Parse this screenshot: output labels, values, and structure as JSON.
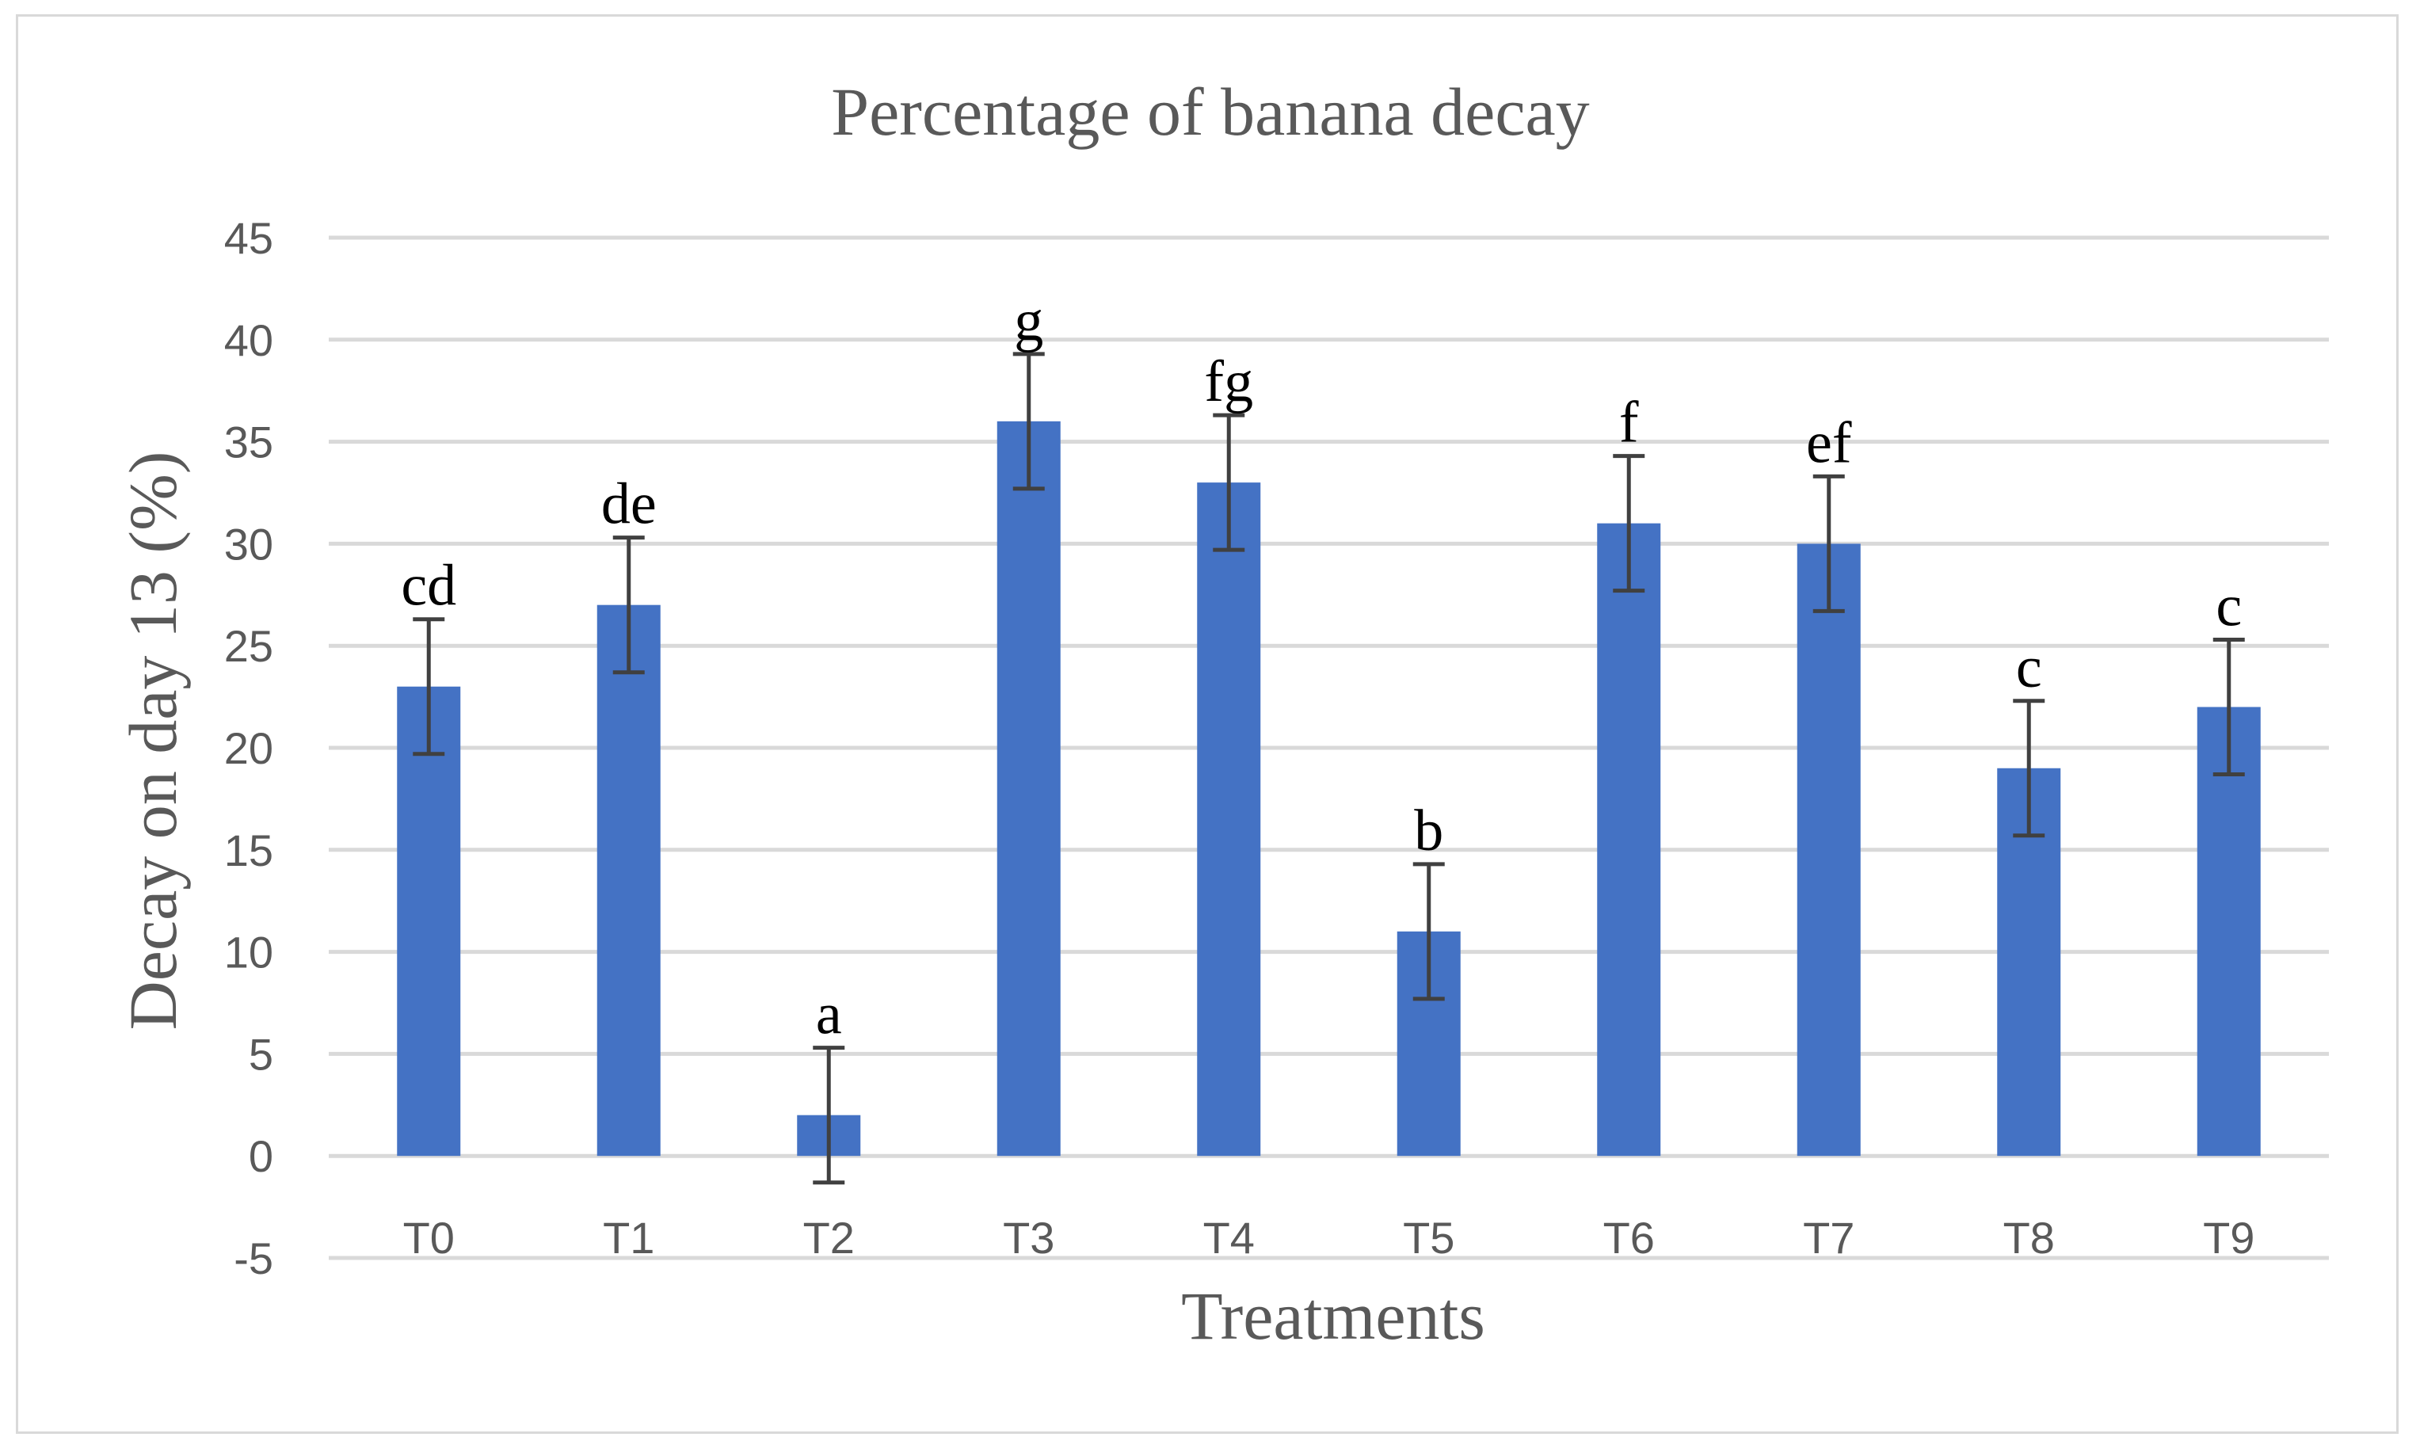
{
  "chart_data": {
    "type": "bar",
    "title": "Percentage of banana decay",
    "xlabel": "Treatments",
    "ylabel": "Decay on day 13 (%)",
    "ylim": [
      -5,
      45
    ],
    "yticks": [
      -5,
      0,
      5,
      10,
      15,
      20,
      25,
      30,
      35,
      40,
      45
    ],
    "grid": true,
    "categories": [
      "T0",
      "T1",
      "T2",
      "T3",
      "T4",
      "T5",
      "T6",
      "T7",
      "T8",
      "T9"
    ],
    "values": [
      23,
      27,
      2,
      36,
      33,
      11,
      31,
      30,
      19,
      22
    ],
    "error": [
      3.3,
      3.3,
      3.3,
      3.3,
      3.3,
      3.3,
      3.3,
      3.3,
      3.3,
      3.3
    ],
    "letters": [
      "cd",
      "de",
      "a",
      "g",
      "fg",
      "b",
      "f",
      "ef",
      "c",
      "c"
    ],
    "colors": {
      "bar": "#4472c4",
      "error_bar": "#404040",
      "grid": "#d9d9d9",
      "text": "#595959"
    }
  }
}
